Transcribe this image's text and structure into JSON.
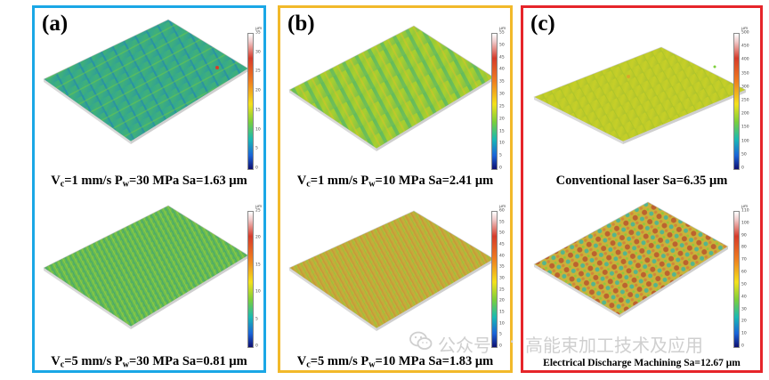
{
  "panels": [
    {
      "label": "(a)",
      "top_caption": {
        "main": "V",
        "sub": "c",
        "rest1": "=1 mm/s P",
        "sub2": "w",
        "rest2": "=30 MPa Sa=1.63 μm"
      },
      "bottom_caption": {
        "main": "V",
        "sub": "c",
        "rest1": "=5 mm/s P",
        "sub2": "w",
        "rest2": "=30 MPa Sa=0.81 μm"
      },
      "scale_top": {
        "unit": "μm",
        "ticks": [
          "35",
          "30",
          "25",
          "20",
          "15",
          "10",
          "5",
          "0"
        ]
      },
      "scale_bottom": {
        "unit": "μm",
        "ticks": [
          "25",
          "20",
          "15",
          "10",
          "5",
          "0"
        ]
      }
    },
    {
      "label": "(b)",
      "top_caption": {
        "main": "V",
        "sub": "c",
        "rest1": "=1 mm/s P",
        "sub2": "w",
        "rest2": "=10 MPa Sa=2.41 μm"
      },
      "bottom_caption": {
        "main": "V",
        "sub": "c",
        "rest1": "=5 mm/s P",
        "sub2": "w",
        "rest2": "=10 MPa Sa=1.83 μm"
      },
      "scale_top": {
        "unit": "μm",
        "ticks": [
          "55",
          "50",
          "45",
          "40",
          "35",
          "30",
          "25",
          "20",
          "15",
          "10",
          "5",
          "0"
        ]
      },
      "scale_bottom": {
        "unit": "μm",
        "ticks": [
          "60",
          "55",
          "50",
          "45",
          "40",
          "35",
          "30",
          "25",
          "20",
          "15",
          "10",
          "5",
          "0"
        ]
      }
    },
    {
      "label": "(c)",
      "top_caption_text": "Conventional laser Sa=6.35 μm",
      "bottom_caption_text": "Electrical Discharge Machining Sa=12.67 μm",
      "scale_top": {
        "unit": "μm",
        "ticks": [
          "500",
          "450",
          "400",
          "350",
          "300",
          "250",
          "200",
          "150",
          "100",
          "50",
          "0"
        ]
      },
      "scale_bottom": {
        "unit": "μm",
        "ticks": [
          "110",
          "100",
          "90",
          "80",
          "70",
          "60",
          "50",
          "40",
          "30",
          "20",
          "10",
          "0"
        ]
      }
    }
  ],
  "watermark": {
    "prefix": "公众号",
    "separator": "·",
    "name": "高能束加工技术及应用"
  },
  "colors": {
    "panel_a": "#1aa7e6",
    "panel_b": "#f2b92a",
    "panel_c": "#e6252a"
  }
}
